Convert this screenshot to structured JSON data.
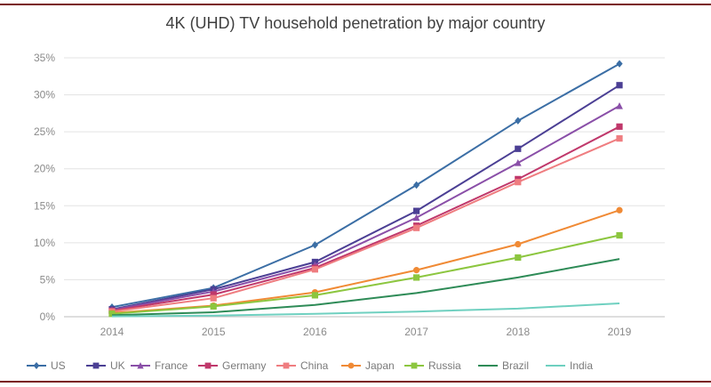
{
  "chart_data": {
    "type": "line",
    "title": "4K (UHD) TV household penetration by major country",
    "xlabel": "",
    "ylabel": "",
    "x": [
      "2014",
      "2015",
      "2016",
      "2017",
      "2018",
      "2019"
    ],
    "ylim": [
      0,
      35
    ],
    "yticks": [
      "0%",
      "5%",
      "10%",
      "15%",
      "20%",
      "25%",
      "30%",
      "35%"
    ],
    "grid": true,
    "legend": "bottom",
    "series": [
      {
        "name": "US",
        "color": "#3b6ea5",
        "marker": "diamond",
        "values": [
          1.3,
          3.9,
          9.7,
          17.8,
          26.5,
          34.2
        ]
      },
      {
        "name": "UK",
        "color": "#4b3f94",
        "marker": "square",
        "values": [
          1.0,
          3.7,
          7.4,
          14.3,
          22.7,
          31.3
        ]
      },
      {
        "name": "France",
        "color": "#8a4fa8",
        "marker": "triangle",
        "values": [
          0.9,
          3.4,
          7.0,
          13.4,
          20.8,
          28.5
        ]
      },
      {
        "name": "Germany",
        "color": "#c0386b",
        "marker": "square",
        "values": [
          0.8,
          3.0,
          6.6,
          12.3,
          18.6,
          25.7
        ]
      },
      {
        "name": "China",
        "color": "#ef7d80",
        "marker": "square",
        "values": [
          0.7,
          2.5,
          6.4,
          12.0,
          18.2,
          24.1
        ]
      },
      {
        "name": "Japan",
        "color": "#f08a35",
        "marker": "circle",
        "values": [
          0.5,
          1.5,
          3.3,
          6.3,
          9.8,
          14.4
        ]
      },
      {
        "name": "Russia",
        "color": "#8cc63f",
        "marker": "square",
        "values": [
          0.4,
          1.4,
          2.9,
          5.3,
          8.0,
          11.0
        ]
      },
      {
        "name": "Brazil",
        "color": "#2e8b57",
        "marker": "none",
        "values": [
          0.2,
          0.6,
          1.6,
          3.2,
          5.3,
          7.8
        ]
      },
      {
        "name": "India",
        "color": "#6fd0c0",
        "marker": "none",
        "values": [
          0.05,
          0.15,
          0.4,
          0.7,
          1.1,
          1.8
        ]
      }
    ]
  }
}
